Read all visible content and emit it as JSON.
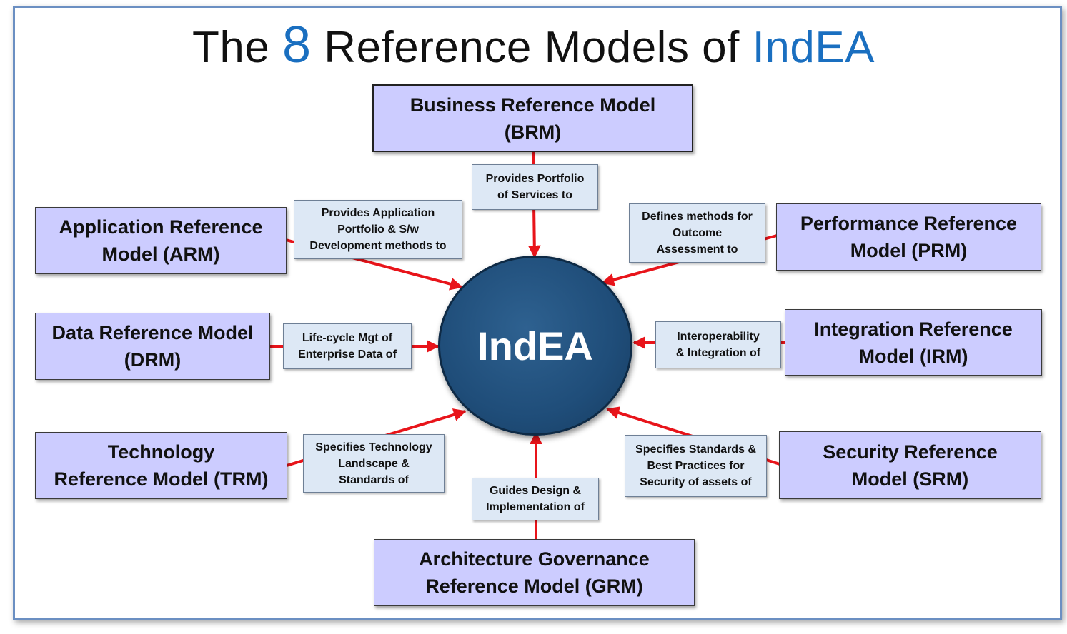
{
  "title": {
    "prefix": "The ",
    "number": "8",
    "middle": " Reference Models of ",
    "brand": "IndEA"
  },
  "hub": {
    "label": "IndEA"
  },
  "models": {
    "brm": {
      "line1": "Business Reference Model",
      "line2": "(BRM)"
    },
    "arm": {
      "line1": "Application Reference",
      "line2": "Model (ARM)"
    },
    "prm": {
      "line1": "Performance Reference",
      "line2": "Model (PRM)"
    },
    "drm": {
      "line1": "Data Reference Model",
      "line2": "(DRM)"
    },
    "irm": {
      "line1": "Integration Reference",
      "line2": "Model (IRM)"
    },
    "trm": {
      "line1": "Technology",
      "line2": "Reference Model (TRM)"
    },
    "srm": {
      "line1": "Security Reference",
      "line2": "Model (SRM)"
    },
    "grm": {
      "line1": "Architecture Governance",
      "line2": "Reference Model (GRM)"
    }
  },
  "relations": {
    "brm": [
      "Provides Portfolio",
      "of Services to"
    ],
    "arm": [
      "Provides Application",
      "Portfolio & S/w",
      "Development methods to"
    ],
    "prm": [
      "Defines methods for",
      "Outcome",
      "Assessment  to"
    ],
    "drm": [
      "Life-cycle Mgt of",
      "Enterprise Data of"
    ],
    "irm": [
      "Interoperability",
      "& Integration of"
    ],
    "trm": [
      "Specifies Technology",
      "Landscape &",
      "Standards of"
    ],
    "srm": [
      "Specifies Standards &",
      "Best Practices for",
      "Security of assets of"
    ],
    "grm": [
      "Guides Design &",
      "Implementation of"
    ]
  },
  "colors": {
    "arrow": "#e8141a",
    "model_fill": "#ccccff",
    "relation_fill": "#dde8f5",
    "hub_fill": "#1f4d79",
    "accent": "#1a6fc0",
    "frame": "#6b8fc2"
  }
}
